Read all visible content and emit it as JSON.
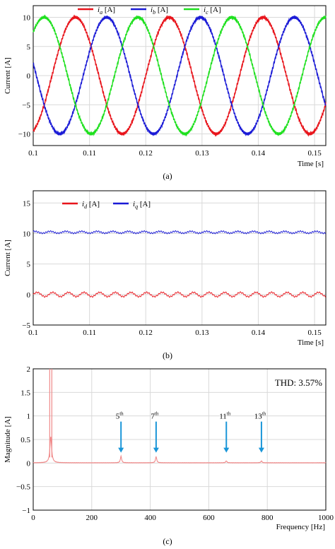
{
  "colors": {
    "red": "#e8141b",
    "blue": "#1a1ad6",
    "green": "#1ee01e",
    "spectrum": "#f08a8a",
    "arrow": "#1a96d8",
    "grid": "#d9d9d9"
  },
  "chart_data": [
    {
      "type": "line",
      "panel": "(a)",
      "xlabel": "Time [s]",
      "ylabel": "Current [A]",
      "xlim": [
        0.1,
        0.152
      ],
      "ylim": [
        -12,
        12
      ],
      "xticks": [
        "0.1",
        "0.11",
        "0.12",
        "0.13",
        "0.14",
        "0.15"
      ],
      "yticks": [
        "10",
        "5",
        "0",
        "−5",
        "−10"
      ],
      "grid": true,
      "legend_position": "top",
      "series": [
        {
          "name": "ia [A]",
          "sub": "a",
          "color": "#e8141b",
          "amplitude": 10,
          "frequency_hz": 60,
          "phase_deg": 0
        },
        {
          "name": "ib [A]",
          "sub": "b",
          "color": "#1a1ad6",
          "amplitude": 10,
          "frequency_hz": 60,
          "phase_deg": -120
        },
        {
          "name": "ic [A]",
          "sub": "c",
          "color": "#1ee01e",
          "amplitude": 10,
          "frequency_hz": 60,
          "phase_deg": 120
        }
      ]
    },
    {
      "type": "line",
      "panel": "(b)",
      "xlabel": "Time [s]",
      "ylabel": "Current [A]",
      "xlim": [
        0.1,
        0.152
      ],
      "ylim": [
        -5,
        17
      ],
      "xticks": [
        "0.1",
        "0.11",
        "0.12",
        "0.13",
        "0.14",
        "0.15"
      ],
      "yticks": [
        "15",
        "10",
        "5",
        "0",
        "−5"
      ],
      "grid": true,
      "legend_position": "top-left",
      "series": [
        {
          "name": "id [A]",
          "sub": "d",
          "color": "#e8141b",
          "mean": 0,
          "ripple": 0.35
        },
        {
          "name": "iq [A]",
          "sub": "q",
          "color": "#1a1ad6",
          "mean": 10.2,
          "ripple": 0.15
        }
      ]
    },
    {
      "type": "line",
      "panel": "(c)",
      "xlabel": "Frequency [Hz]",
      "ylabel": "Magnitude [A]",
      "xlim": [
        0,
        1000
      ],
      "ylim": [
        -1,
        2
      ],
      "xticks": [
        "0",
        "200",
        "400",
        "600",
        "800",
        "1000"
      ],
      "yticks": [
        "2",
        "1.5",
        "1",
        "0.5",
        "0",
        "−0.5",
        "−1"
      ],
      "grid": true,
      "annotation": "THD: 3.57%",
      "fundamental_hz": 60,
      "harmonics": [
        {
          "label": "5",
          "sup": "th",
          "freq": 300,
          "magnitude": 0.14
        },
        {
          "label": "7",
          "sup": "th",
          "freq": 420,
          "magnitude": 0.13
        },
        {
          "label": "11",
          "sup": "th",
          "freq": 660,
          "magnitude": 0.04
        },
        {
          "label": "13",
          "sup": "th",
          "freq": 780,
          "magnitude": 0.04
        }
      ]
    }
  ],
  "captions": {
    "a": "(a)",
    "b": "(b)",
    "c": "(c)"
  }
}
